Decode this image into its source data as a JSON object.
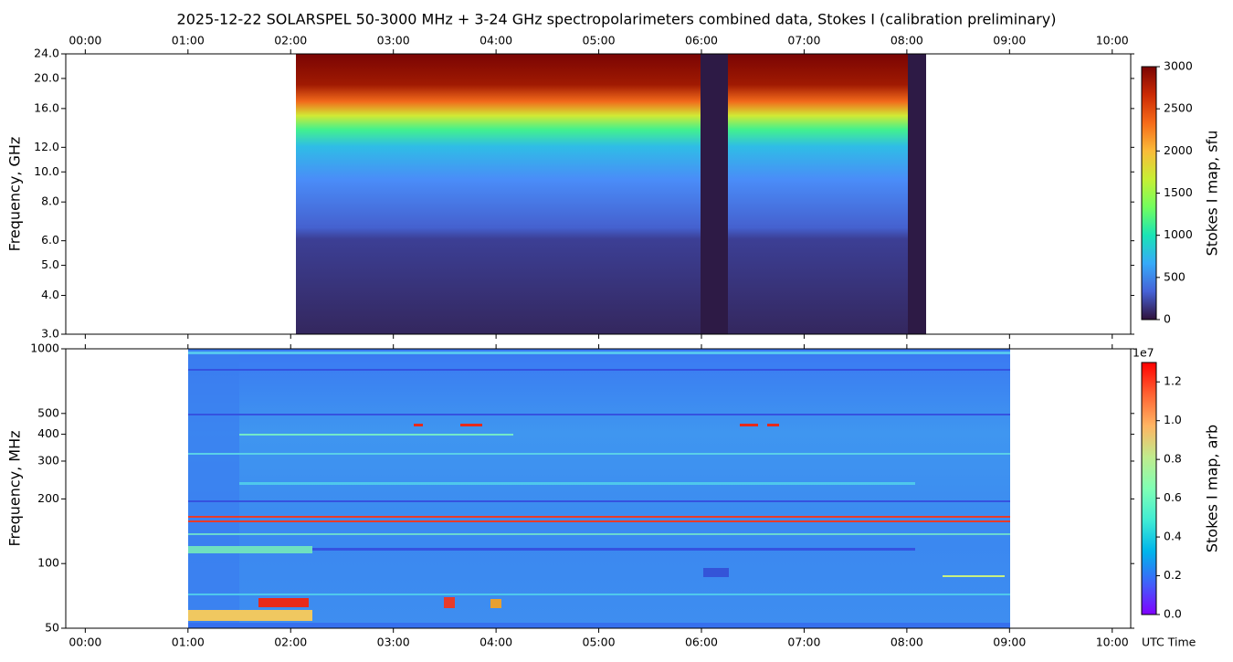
{
  "chart_data": [
    {
      "type": "spectrogram",
      "title": "2025-12-22  SOLARSPEL  50-3000 MHz  +  3-24 GHz  spectropolarimeters combined data,  Stokes I  (calibration preliminary)",
      "y_label": "Frequency, GHz",
      "xlim": [
        -0.19,
        10.18
      ],
      "xticks": [
        {
          "value": 0,
          "label": "00:00"
        },
        {
          "value": 1,
          "label": "01:00"
        },
        {
          "value": 2,
          "label": "02:00"
        },
        {
          "value": 3,
          "label": "03:00"
        },
        {
          "value": 4,
          "label": "04:00"
        },
        {
          "value": 5,
          "label": "05:00"
        },
        {
          "value": 6,
          "label": "06:00"
        },
        {
          "value": 7,
          "label": "07:00"
        },
        {
          "value": 8,
          "label": "08:00"
        },
        {
          "value": 9,
          "label": "09:00"
        },
        {
          "value": 10,
          "label": "10:00"
        }
      ],
      "ylim": [
        3,
        24
      ],
      "y_log": true,
      "yticks": [
        {
          "value": 3,
          "label": "3.0"
        },
        {
          "value": 4,
          "label": "4.0"
        },
        {
          "value": 5,
          "label": "5.0"
        },
        {
          "value": 6,
          "label": "6.0"
        },
        {
          "value": 8,
          "label": "8.0"
        },
        {
          "value": 10,
          "label": "10.0"
        },
        {
          "value": 12,
          "label": "12.0"
        },
        {
          "value": 16,
          "label": "16.0"
        },
        {
          "value": 20,
          "label": "20.0"
        },
        {
          "value": 24,
          "label": "24.0"
        }
      ],
      "colorbar": {
        "label": "Stokes I map, sfu",
        "colormap": "turbo",
        "lim": [
          0,
          3000
        ],
        "ticks": [
          0,
          500,
          1000,
          1500,
          2000,
          2500,
          3000
        ]
      }
    },
    {
      "type": "spectrogram",
      "y_label": "Frequency, MHz",
      "x_label": "UTC Time",
      "xlim": [
        -0.19,
        10.18
      ],
      "xticks": [
        {
          "value": 0,
          "label": "00:00"
        },
        {
          "value": 1,
          "label": "01:00"
        },
        {
          "value": 2,
          "label": "02:00"
        },
        {
          "value": 3,
          "label": "03:00"
        },
        {
          "value": 4,
          "label": "04:00"
        },
        {
          "value": 5,
          "label": "05:00"
        },
        {
          "value": 6,
          "label": "06:00"
        },
        {
          "value": 7,
          "label": "07:00"
        },
        {
          "value": 8,
          "label": "08:00"
        },
        {
          "value": 9,
          "label": "09:00"
        },
        {
          "value": 10,
          "label": "10:00"
        }
      ],
      "ylim": [
        50,
        1000
      ],
      "y_log": true,
      "yticks": [
        50,
        100,
        200,
        300,
        400,
        500,
        1000
      ],
      "colorbar": {
        "label": "Stokes I map, arb",
        "colormap": "rainbow",
        "lim": [
          0,
          13000000
        ],
        "offset_label": "1e7",
        "ticks": [
          {
            "value": 0,
            "label": "0.0"
          },
          {
            "value": 2000000,
            "label": "0.2"
          },
          {
            "value": 4000000,
            "label": "0.4"
          },
          {
            "value": 6000000,
            "label": "0.6"
          },
          {
            "value": 8000000,
            "label": "0.8"
          },
          {
            "value": 10000000,
            "label": "1.0"
          },
          {
            "value": 12000000,
            "label": "1.2"
          }
        ]
      }
    }
  ]
}
